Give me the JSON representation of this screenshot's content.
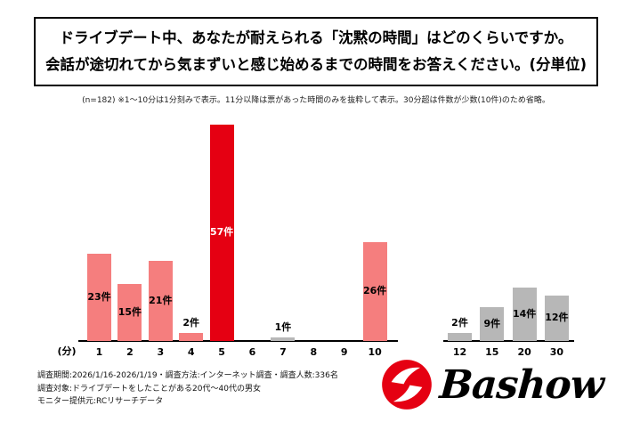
{
  "title": {
    "line1": "ドライブデート中、あなたが耐えられる「沈黙の時間」はどのくらいですか。",
    "line2": "会話が途切れてから気まずいと感じ始めるまでの時間をお答えください。(分単位)"
  },
  "note": "(n=182) ※1〜10分は1分刻みで表示。11分以降は票があった時間のみを抜粋して表示。30分超は件数が少数(10件)のため省略。",
  "footer": {
    "line1": "調査期間:2026/1/16-2026/1/19・調査方法:インターネット調査・調査人数:336名",
    "line2": "調査対象:ドライブデートをしたことがある20代〜40代の男女",
    "line3": "モニター提供元:RCリサーチデータ"
  },
  "logo": {
    "text": "Bashow"
  },
  "chart_data": {
    "type": "bar",
    "title": "ドライブデート中、あなたが耐えられる「沈黙の時間」はどのくらいですか。",
    "xlabel": "(分)",
    "ylabel": "",
    "ylim": [
      0,
      60
    ],
    "grid": false,
    "legend": "none",
    "categories": [
      "1",
      "2",
      "3",
      "4",
      "5",
      "6",
      "7",
      "8",
      "9",
      "10",
      "12",
      "15",
      "20",
      "30"
    ],
    "values": [
      23,
      15,
      21,
      2,
      57,
      0,
      1,
      0,
      0,
      26,
      2,
      9,
      14,
      12
    ],
    "bars": [
      {
        "category": "1",
        "value": 23,
        "label": "23件",
        "color": "pink"
      },
      {
        "category": "2",
        "value": 15,
        "label": "15件",
        "color": "pink"
      },
      {
        "category": "3",
        "value": 21,
        "label": "21件",
        "color": "pink"
      },
      {
        "category": "4",
        "value": 2,
        "label": "2件",
        "color": "pink"
      },
      {
        "category": "5",
        "value": 57,
        "label": "57件",
        "color": "red"
      },
      {
        "category": "6",
        "value": 0,
        "label": "",
        "color": "none"
      },
      {
        "category": "7",
        "value": 1,
        "label": "1件",
        "color": "gray"
      },
      {
        "category": "8",
        "value": 0,
        "label": "",
        "color": "none"
      },
      {
        "category": "9",
        "value": 0,
        "label": "",
        "color": "none"
      },
      {
        "category": "10",
        "value": 26,
        "label": "26件",
        "color": "pink"
      },
      {
        "category": "12",
        "value": 2,
        "label": "2件",
        "color": "gray"
      },
      {
        "category": "15",
        "value": 9,
        "label": "9件",
        "color": "gray"
      },
      {
        "category": "20",
        "value": 14,
        "label": "14件",
        "color": "gray"
      },
      {
        "category": "30",
        "value": 12,
        "label": "12件",
        "color": "gray"
      }
    ],
    "colors": {
      "red": "#e50012",
      "pink": "#f57e7e",
      "gray": "#b7b7b7"
    }
  }
}
